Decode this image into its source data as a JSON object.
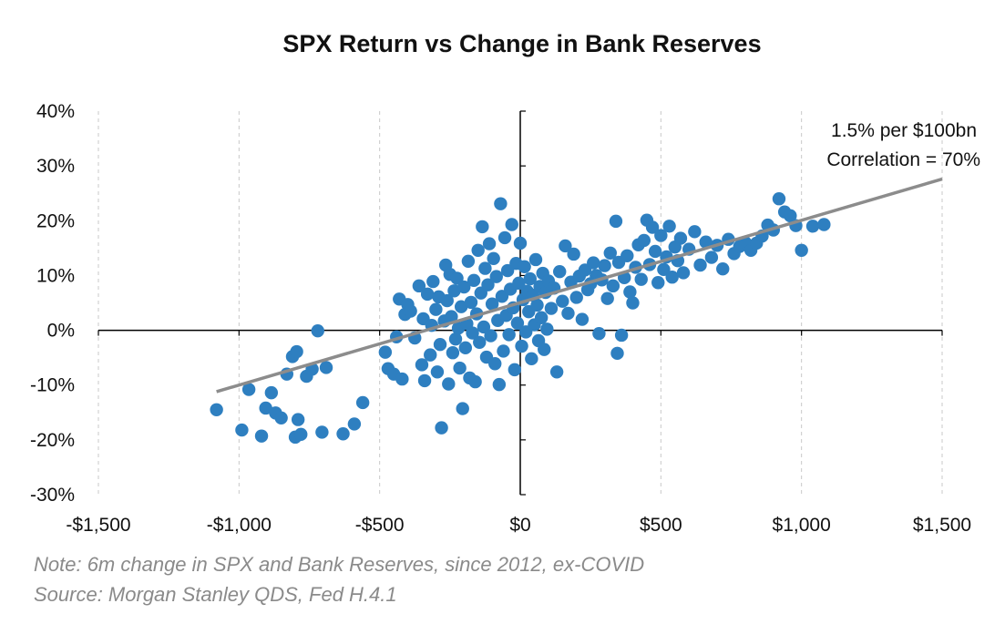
{
  "chart_data": {
    "type": "scatter",
    "title": "SPX Return vs Change in Bank Reserves",
    "xlabel": "",
    "ylabel": "",
    "xlim": [
      -1500,
      1500
    ],
    "ylim": [
      -30,
      40
    ],
    "x_ticks": [
      -1500,
      -1000,
      -500,
      0,
      500,
      1000,
      1500
    ],
    "x_tick_labels": [
      "-$1,500",
      "-$1,000",
      "-$500",
      "$0",
      "$500",
      "$1,000",
      "$1,500"
    ],
    "y_ticks": [
      -30,
      -20,
      -10,
      0,
      10,
      20,
      30,
      40
    ],
    "y_tick_labels": [
      "-30%",
      "-20%",
      "-10%",
      "0%",
      "10%",
      "20%",
      "30%",
      "40%"
    ],
    "grid": "vertical dashed",
    "annotations": [
      "1.5% per $100bn",
      "Correlation = 70%"
    ],
    "notes": [
      "Note: 6m change in SPX and Bank Reserves, since 2012, ex-COVID",
      "Source: Morgan Stanley QDS, Fed H.4.1"
    ],
    "colors": {
      "points": "#2e7fc0",
      "trendline": "#8c8c8c",
      "axis": "#000000",
      "grid": "#c8c8c8"
    },
    "trendline": {
      "x": [
        -1080,
        1500
      ],
      "y": [
        -11.2,
        27.6
      ]
    },
    "series": [
      {
        "name": "6m change",
        "points": [
          [
            -1080,
            -14.5
          ],
          [
            -990,
            -18.2
          ],
          [
            -965,
            -10.8
          ],
          [
            -920,
            -19.3
          ],
          [
            -905,
            -14.2
          ],
          [
            -885,
            -11.4
          ],
          [
            -870,
            -15.1
          ],
          [
            -850,
            -16.0
          ],
          [
            -830,
            -8.0
          ],
          [
            -810,
            -4.8
          ],
          [
            -800,
            -19.5
          ],
          [
            -795,
            -3.9
          ],
          [
            -790,
            -16.3
          ],
          [
            -780,
            -19.0
          ],
          [
            -760,
            -8.4
          ],
          [
            -740,
            -7.1
          ],
          [
            -720,
            -0.1
          ],
          [
            -705,
            -18.6
          ],
          [
            -690,
            -6.8
          ],
          [
            -630,
            -18.9
          ],
          [
            -590,
            -17.1
          ],
          [
            -560,
            -13.2
          ],
          [
            -480,
            -4.0
          ],
          [
            -470,
            -7.0
          ],
          [
            -450,
            -8.0
          ],
          [
            -440,
            -1.2
          ],
          [
            -430,
            5.7
          ],
          [
            -420,
            -8.9
          ],
          [
            -410,
            2.9
          ],
          [
            -400,
            4.7
          ],
          [
            -390,
            3.5
          ],
          [
            -375,
            -1.4
          ],
          [
            -360,
            8.1
          ],
          [
            -350,
            -6.3
          ],
          [
            -345,
            2.1
          ],
          [
            -340,
            -9.2
          ],
          [
            -330,
            6.6
          ],
          [
            -320,
            -4.5
          ],
          [
            -315,
            0.9
          ],
          [
            -310,
            8.9
          ],
          [
            -300,
            3.8
          ],
          [
            -295,
            -7.6
          ],
          [
            -290,
            6.1
          ],
          [
            -285,
            -2.6
          ],
          [
            -280,
            -17.8
          ],
          [
            -270,
            1.7
          ],
          [
            -265,
            11.9
          ],
          [
            -260,
            5.4
          ],
          [
            -255,
            -9.8
          ],
          [
            -250,
            10.2
          ],
          [
            -245,
            2.5
          ],
          [
            -240,
            -4.1
          ],
          [
            -235,
            7.2
          ],
          [
            -230,
            -1.6
          ],
          [
            -225,
            9.5
          ],
          [
            -220,
            0.4
          ],
          [
            -215,
            -6.9
          ],
          [
            -210,
            4.3
          ],
          [
            -205,
            -14.3
          ],
          [
            -200,
            7.9
          ],
          [
            -195,
            -3.2
          ],
          [
            -190,
            1.2
          ],
          [
            -185,
            12.6
          ],
          [
            -180,
            -8.7
          ],
          [
            -175,
            5.1
          ],
          [
            -170,
            -0.5
          ],
          [
            -165,
            9.1
          ],
          [
            -160,
            -9.4
          ],
          [
            -155,
            3.0
          ],
          [
            -150,
            14.6
          ],
          [
            -145,
            -2.2
          ],
          [
            -140,
            6.8
          ],
          [
            -135,
            18.9
          ],
          [
            -130,
            0.6
          ],
          [
            -125,
            11.3
          ],
          [
            -120,
            -4.9
          ],
          [
            -115,
            8.3
          ],
          [
            -110,
            15.8
          ],
          [
            -105,
            -1.0
          ],
          [
            -100,
            4.8
          ],
          [
            -95,
            13.1
          ],
          [
            -90,
            -6.1
          ],
          [
            -85,
            9.8
          ],
          [
            -80,
            1.8
          ],
          [
            -75,
            -9.9
          ],
          [
            -70,
            23.1
          ],
          [
            -65,
            6.2
          ],
          [
            -60,
            -3.8
          ],
          [
            -55,
            16.9
          ],
          [
            -50,
            2.7
          ],
          [
            -45,
            10.9
          ],
          [
            -40,
            -0.8
          ],
          [
            -35,
            7.5
          ],
          [
            -30,
            19.3
          ],
          [
            -25,
            4.1
          ],
          [
            -20,
            -7.2
          ],
          [
            -15,
            12.2
          ],
          [
            -10,
            1.3
          ],
          [
            -5,
            8.6
          ],
          [
            0,
            15.9
          ],
          [
            5,
            -2.9
          ],
          [
            10,
            5.6
          ],
          [
            15,
            11.6
          ],
          [
            20,
            -0.3
          ],
          [
            25,
            7.1
          ],
          [
            30,
            3.4
          ],
          [
            35,
            9.4
          ],
          [
            40,
            -5.2
          ],
          [
            45,
            6.4
          ],
          [
            50,
            1.0
          ],
          [
            55,
            12.9
          ],
          [
            60,
            4.6
          ],
          [
            65,
            -1.9
          ],
          [
            70,
            8.0
          ],
          [
            75,
            2.3
          ],
          [
            80,
            10.4
          ],
          [
            85,
            -3.5
          ],
          [
            90,
            6.9
          ],
          [
            95,
            0.2
          ],
          [
            100,
            9.0
          ],
          [
            110,
            4.0
          ],
          [
            120,
            7.7
          ],
          [
            130,
            -7.6
          ],
          [
            140,
            10.7
          ],
          [
            150,
            5.3
          ],
          [
            160,
            15.4
          ],
          [
            170,
            3.1
          ],
          [
            180,
            8.8
          ],
          [
            190,
            13.9
          ],
          [
            200,
            6.0
          ],
          [
            210,
            9.9
          ],
          [
            220,
            2.0
          ],
          [
            230,
            11.0
          ],
          [
            240,
            7.4
          ],
          [
            250,
            8.5
          ],
          [
            260,
            12.3
          ],
          [
            270,
            10.0
          ],
          [
            280,
            -0.6
          ],
          [
            290,
            9.2
          ],
          [
            300,
            11.8
          ],
          [
            310,
            5.8
          ],
          [
            320,
            14.1
          ],
          [
            330,
            8.1
          ],
          [
            340,
            19.9
          ],
          [
            345,
            -4.2
          ],
          [
            350,
            12.4
          ],
          [
            360,
            -0.9
          ],
          [
            370,
            9.6
          ],
          [
            380,
            13.6
          ],
          [
            390,
            7.0
          ],
          [
            400,
            5.0
          ],
          [
            410,
            11.5
          ],
          [
            420,
            15.6
          ],
          [
            430,
            9.3
          ],
          [
            440,
            16.4
          ],
          [
            450,
            20.1
          ],
          [
            460,
            12.0
          ],
          [
            470,
            18.8
          ],
          [
            480,
            14.4
          ],
          [
            490,
            8.7
          ],
          [
            500,
            17.3
          ],
          [
            510,
            11.1
          ],
          [
            520,
            13.4
          ],
          [
            530,
            19.0
          ],
          [
            540,
            9.7
          ],
          [
            550,
            15.2
          ],
          [
            560,
            12.7
          ],
          [
            570,
            16.8
          ],
          [
            580,
            10.5
          ],
          [
            600,
            14.8
          ],
          [
            620,
            18.0
          ],
          [
            640,
            11.9
          ],
          [
            660,
            16.1
          ],
          [
            680,
            13.3
          ],
          [
            700,
            15.5
          ],
          [
            720,
            11.2
          ],
          [
            740,
            16.6
          ],
          [
            760,
            14.0
          ],
          [
            780,
            15.3
          ],
          [
            800,
            16.0
          ],
          [
            820,
            14.6
          ],
          [
            840,
            15.9
          ],
          [
            860,
            17.2
          ],
          [
            880,
            19.2
          ],
          [
            900,
            18.3
          ],
          [
            920,
            24.0
          ],
          [
            940,
            21.6
          ],
          [
            960,
            20.9
          ],
          [
            980,
            19.1
          ],
          [
            1000,
            14.6
          ],
          [
            1040,
            19.0
          ],
          [
            1080,
            19.3
          ]
        ]
      }
    ]
  }
}
